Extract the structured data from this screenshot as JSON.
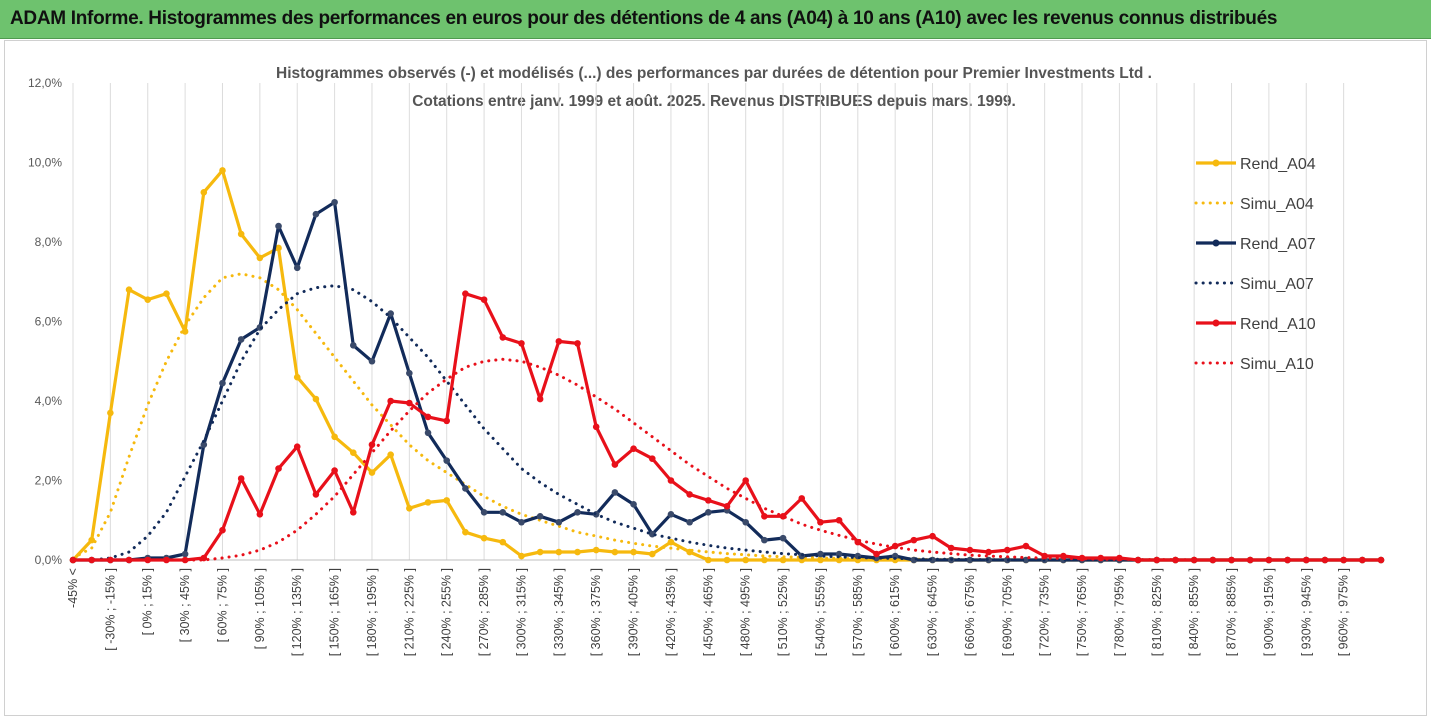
{
  "header": {
    "title": "ADAM Informe. Histogrammes des performances en euros pour des détentions de 4 ans (A04) à 10 ans (A10) avec les revenus connus distribués"
  },
  "colors": {
    "header_bg": "#6ec26e",
    "A04": "#f6b90e",
    "A07": "#122b5a",
    "A10": "#e8101a",
    "grid": "#d9d9d9"
  },
  "chart_data": {
    "type": "line",
    "title": "Histogrammes observés (-) et modélisés (...) des performances par durées de détention pour Premier Investments Ltd .",
    "subtitle": "Cotations entre janv. 1999 et août. 2025. Revenus DISTRIBUES depuis mars. 1999.",
    "xlabel": "",
    "ylabel": "",
    "ylim": [
      0,
      12
    ],
    "y_ticks": [
      "0,0%",
      "2,0%",
      "4,0%",
      "6,0%",
      "8,0%",
      "10,0%",
      "12,0%"
    ],
    "grid": "vertical",
    "legend_position": "right",
    "x_tick_labels": [
      "-45% <",
      "[ -30% ; -15% ]",
      "[ 0% ; 15% ]",
      "[ 30% ; 45% ]",
      "[ 60% ; 75% ]",
      "[ 90% ; 105% ]",
      "[ 120% ; 135% ]",
      "[ 150% ; 165% ]",
      "[ 180% ; 195% ]",
      "[ 210% ; 225% ]",
      "[ 240% ; 255% ]",
      "[ 270% ; 285% ]",
      "[ 300% ; 315% ]",
      "[ 330% ; 345% ]",
      "[ 360% ; 375% ]",
      "[ 390% ; 405% ]",
      "[ 420% ; 435% ]",
      "[ 450% ; 465% ]",
      "[ 480% ; 495% ]",
      "[ 510% ; 525% ]",
      "[ 540% ; 555% ]",
      "[ 570% ; 585% ]",
      "[ 600% ; 615% ]",
      "[ 630% ; 645% ]",
      "[ 660% ; 675% ]",
      "[ 690% ; 705% ]",
      "[ 720% ; 735% ]",
      "[ 750% ; 765% ]",
      "[ 780% ; 795% ]",
      "[ 810% ; 825% ]",
      "[ 840% ; 855% ]",
      "[ 870% ; 885% ]",
      "[ 900% ; 915% ]",
      "[ 930% ; 945% ]",
      "[ 960% ; 975% ]"
    ],
    "series": [
      {
        "name": "Rend_A04",
        "style": "solid",
        "color": "#f6b90e",
        "values": [
          0,
          0.5,
          3.7,
          6.8,
          6.55,
          6.7,
          5.75,
          9.25,
          9.8,
          8.2,
          7.6,
          7.85,
          4.6,
          4.05,
          3.1,
          2.7,
          2.2,
          2.65,
          1.3,
          1.45,
          1.5,
          0.7,
          0.55,
          0.45,
          0.1,
          0.2,
          0.2,
          0.2,
          0.25,
          0.2,
          0.2,
          0.15,
          0.45,
          0.2,
          0,
          0,
          0,
          0,
          0,
          0,
          0,
          0,
          0,
          0,
          0,
          0,
          0,
          0,
          0,
          0,
          0,
          0,
          0,
          0,
          0,
          0,
          0,
          0,
          0,
          0,
          0,
          0,
          0,
          0,
          0,
          0,
          0,
          0,
          0,
          0,
          0
        ]
      },
      {
        "name": "Simu_A04",
        "style": "dotted",
        "color": "#f6b90e",
        "values": [
          0.05,
          0.3,
          1.2,
          2.6,
          3.9,
          5.0,
          5.9,
          6.6,
          7.1,
          7.2,
          7.1,
          6.8,
          6.3,
          5.7,
          5.1,
          4.5,
          3.9,
          3.4,
          2.9,
          2.5,
          2.2,
          1.9,
          1.6,
          1.35,
          1.15,
          1.0,
          0.85,
          0.7,
          0.6,
          0.5,
          0.42,
          0.35,
          0.3,
          0.25,
          0.2,
          0.16,
          0.13,
          0.1,
          0.08,
          0.07,
          0.05,
          0.04,
          0.03,
          0.03,
          0.02,
          0.02,
          0.01,
          0.01,
          0,
          0,
          0,
          0,
          0,
          0,
          0,
          0,
          0,
          0,
          0,
          0,
          0,
          0,
          0,
          0,
          0,
          0,
          0,
          0,
          0,
          0,
          0
        ]
      },
      {
        "name": "Rend_A07",
        "style": "solid",
        "color": "#122b5a",
        "values": [
          0,
          0,
          0,
          0,
          0.05,
          0.05,
          0.15,
          2.9,
          4.45,
          5.55,
          5.85,
          8.4,
          7.35,
          8.7,
          9.0,
          5.4,
          5.0,
          6.2,
          4.7,
          3.2,
          2.5,
          1.8,
          1.2,
          1.2,
          0.95,
          1.1,
          0.95,
          1.2,
          1.15,
          1.7,
          1.4,
          0.65,
          1.15,
          0.95,
          1.2,
          1.25,
          0.95,
          0.5,
          0.55,
          0.1,
          0.15,
          0.15,
          0.1,
          0.05,
          0.1,
          0,
          0,
          0,
          0,
          0,
          0,
          0,
          0,
          0,
          0,
          0,
          0,
          0,
          0,
          0,
          0,
          0,
          0,
          0,
          0,
          0,
          0,
          0,
          0,
          0,
          0
        ]
      },
      {
        "name": "Simu_A07",
        "style": "dotted",
        "color": "#122b5a",
        "values": [
          0,
          0,
          0.05,
          0.2,
          0.6,
          1.2,
          2.1,
          3.0,
          4.0,
          5.0,
          5.8,
          6.3,
          6.7,
          6.85,
          6.9,
          6.8,
          6.5,
          6.1,
          5.6,
          5.1,
          4.5,
          3.9,
          3.3,
          2.8,
          2.3,
          1.95,
          1.65,
          1.4,
          1.15,
          0.95,
          0.8,
          0.65,
          0.55,
          0.45,
          0.37,
          0.3,
          0.25,
          0.2,
          0.16,
          0.13,
          0.1,
          0.08,
          0.06,
          0.05,
          0.04,
          0.03,
          0.02,
          0.02,
          0.01,
          0.01,
          0,
          0,
          0,
          0,
          0,
          0,
          0,
          0,
          0,
          0,
          0,
          0,
          0,
          0,
          0,
          0,
          0,
          0,
          0,
          0,
          0
        ]
      },
      {
        "name": "Rend_A10",
        "style": "solid",
        "color": "#e8101a",
        "values": [
          0,
          0,
          0,
          0,
          0,
          0,
          0,
          0.05,
          0.75,
          2.05,
          1.15,
          2.3,
          2.85,
          1.65,
          2.25,
          1.2,
          2.9,
          4.0,
          3.95,
          3.6,
          3.5,
          6.7,
          6.55,
          5.6,
          5.45,
          4.05,
          5.5,
          5.45,
          3.35,
          2.4,
          2.8,
          2.55,
          2.0,
          1.65,
          1.5,
          1.35,
          2.0,
          1.1,
          1.1,
          1.55,
          0.95,
          1.0,
          0.45,
          0.15,
          0.35,
          0.5,
          0.6,
          0.3,
          0.25,
          0.2,
          0.25,
          0.35,
          0.1,
          0.1,
          0.05,
          0.05,
          0.05,
          0,
          0,
          0,
          0,
          0,
          0,
          0,
          0,
          0,
          0,
          0,
          0,
          0,
          0
        ]
      },
      {
        "name": "Simu_A10",
        "style": "dotted",
        "color": "#e8101a",
        "values": [
          0,
          0,
          0,
          0,
          0,
          0,
          0,
          0,
          0.05,
          0.12,
          0.25,
          0.45,
          0.75,
          1.15,
          1.6,
          2.15,
          2.7,
          3.25,
          3.75,
          4.2,
          4.55,
          4.85,
          5.0,
          5.05,
          5.0,
          4.85,
          4.65,
          4.4,
          4.1,
          3.8,
          3.45,
          3.1,
          2.75,
          2.4,
          2.1,
          1.8,
          1.55,
          1.3,
          1.1,
          0.9,
          0.75,
          0.62,
          0.5,
          0.4,
          0.32,
          0.25,
          0.2,
          0.16,
          0.12,
          0.1,
          0.08,
          0.06,
          0.05,
          0.04,
          0.03,
          0.02,
          0.02,
          0.01,
          0.01,
          0.01,
          0,
          0,
          0,
          0,
          0,
          0,
          0,
          0,
          0,
          0,
          0
        ]
      }
    ]
  }
}
